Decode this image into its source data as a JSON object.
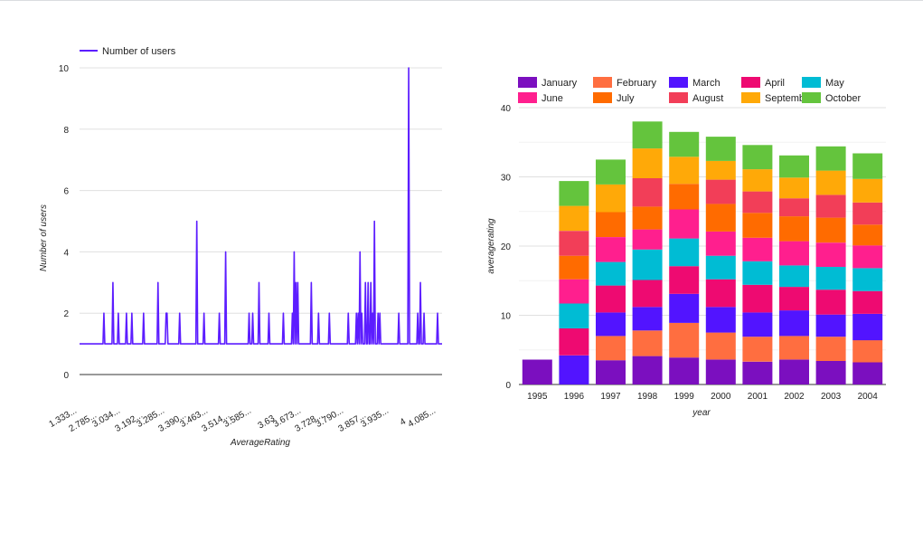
{
  "chart_data": [
    {
      "type": "line",
      "legend": [
        "Number of users"
      ],
      "legend_position": "top-left",
      "series_color": "#5c1dff",
      "xlabel": "AverageRating",
      "ylabel": "Number of users",
      "ylim": [
        0,
        10
      ],
      "yticks": [
        "0",
        "2",
        "4",
        "6",
        "8",
        "10"
      ],
      "xticks": [
        "1.333...",
        "2.785...",
        "3.034...",
        "3.192...",
        "3.285...",
        "3.390...",
        "3.463...",
        "3.514...",
        "3.585...",
        "3.63",
        "3.673...",
        "3.728...",
        "3.790...",
        "3.857...",
        "3.935...",
        "4",
        "4.085..."
      ],
      "values": [
        1,
        1,
        1,
        1,
        1,
        1,
        1,
        1,
        1,
        1,
        1,
        1,
        1,
        1,
        1,
        1,
        1,
        1,
        1,
        1,
        1,
        1,
        1,
        1,
        1,
        1,
        1,
        1,
        1,
        1,
        1,
        1,
        1,
        1,
        1,
        1,
        1,
        1,
        1,
        1,
        1,
        1,
        1,
        1,
        1,
        1,
        1,
        1,
        1,
        1,
        1,
        1,
        1,
        1,
        1,
        1,
        1,
        1,
        1,
        1,
        1,
        1,
        1,
        1,
        1,
        1,
        1,
        1,
        1,
        1,
        1,
        1,
        1,
        1,
        1,
        1,
        1,
        1,
        1,
        1,
        1,
        1,
        1,
        1,
        1,
        1,
        1,
        1,
        1,
        1,
        1,
        1,
        1,
        1,
        1,
        1,
        1,
        1,
        1,
        1,
        1,
        1,
        1,
        1,
        1,
        1,
        1,
        1,
        1,
        1,
        1,
        1,
        1,
        1,
        1,
        1,
        1,
        1,
        1,
        1,
        1,
        1,
        1,
        1,
        1,
        1,
        1,
        1,
        1,
        1,
        1,
        1,
        1,
        1,
        1,
        1,
        1,
        1,
        1,
        1,
        1,
        1,
        1,
        1,
        1,
        1,
        1,
        1,
        1,
        1,
        1,
        1,
        1,
        1,
        1,
        1,
        1,
        1,
        1,
        1,
        1,
        1,
        1,
        1,
        1,
        1,
        1,
        1,
        1,
        1,
        1,
        1,
        1,
        1,
        1,
        1,
        1,
        1,
        1,
        1,
        1,
        1,
        1,
        1,
        1,
        1,
        1,
        1,
        1,
        1,
        1,
        1,
        1,
        1,
        1,
        1,
        1,
        1,
        1,
        1,
        1,
        1,
        1,
        1,
        1,
        1,
        1,
        1,
        1,
        1
      ],
      "spikes": [
        [
          27,
          2
        ],
        [
          37,
          3
        ],
        [
          43,
          2
        ],
        [
          52,
          2
        ],
        [
          58,
          2
        ],
        [
          71,
          2
        ],
        [
          87,
          3
        ],
        [
          96,
          2
        ],
        [
          97,
          2
        ],
        [
          111,
          2
        ],
        [
          130,
          5
        ],
        [
          138,
          2
        ],
        [
          155,
          2
        ],
        [
          162,
          4
        ],
        [
          188,
          2
        ],
        [
          192,
          2
        ],
        [
          199,
          3
        ],
        [
          210,
          2
        ],
        [
          226,
          2
        ],
        [
          236,
          2
        ],
        [
          238,
          4
        ],
        [
          240,
          3
        ],
        [
          242,
          3
        ],
        [
          257,
          3
        ],
        [
          265,
          2
        ],
        [
          277,
          2
        ],
        [
          298,
          2
        ],
        [
          307,
          2
        ],
        [
          309,
          2
        ],
        [
          311,
          4
        ],
        [
          313,
          2
        ],
        [
          317,
          3
        ],
        [
          320,
          3
        ],
        [
          323,
          3
        ],
        [
          325,
          2
        ],
        [
          327,
          5
        ],
        [
          331,
          2
        ],
        [
          333,
          2
        ],
        [
          354,
          2
        ],
        [
          365,
          10
        ],
        [
          375,
          2
        ],
        [
          378,
          3
        ],
        [
          382,
          2
        ],
        [
          397,
          2
        ]
      ],
      "x_count": 403
    },
    {
      "type": "bar",
      "stacked": true,
      "title": "",
      "xlabel": "year",
      "ylabel": "averagerating",
      "ylim": [
        0,
        40
      ],
      "yticks": [
        "0",
        "10",
        "20",
        "30",
        "40"
      ],
      "categories": [
        "1995",
        "1996",
        "1997",
        "1998",
        "1999",
        "2000",
        "2001",
        "2002",
        "2003",
        "2004"
      ],
      "legend_position": "top",
      "series": [
        {
          "name": "January",
          "color": "#7b0fbf",
          "values": [
            3.6,
            0,
            3.5,
            4.1,
            3.9,
            3.6,
            3.3,
            3.6,
            3.4,
            3.2
          ]
        },
        {
          "name": "February",
          "color": "#ff6e40",
          "values": [
            0,
            0,
            3.5,
            3.7,
            5.0,
            3.9,
            3.6,
            3.4,
            3.5,
            3.2
          ]
        },
        {
          "name": "March",
          "color": "#5214ff",
          "values": [
            0,
            4.2,
            3.4,
            3.4,
            4.2,
            3.7,
            3.5,
            3.7,
            3.2,
            3.8
          ]
        },
        {
          "name": "April",
          "color": "#ee0a71",
          "values": [
            0,
            3.9,
            3.9,
            3.9,
            4.0,
            4.0,
            4.0,
            3.4,
            3.6,
            3.3
          ]
        },
        {
          "name": "May",
          "color": "#00bcd4",
          "values": [
            0,
            3.6,
            3.4,
            4.4,
            4.0,
            3.4,
            3.4,
            3.1,
            3.3,
            3.3
          ]
        },
        {
          "name": "June",
          "color": "#ff1f8e",
          "values": [
            0,
            3.5,
            3.6,
            2.9,
            4.2,
            3.5,
            3.4,
            3.5,
            3.5,
            3.3
          ]
        },
        {
          "name": "July",
          "color": "#ff6b00",
          "values": [
            0,
            3.4,
            3.6,
            3.3,
            3.7,
            4.0,
            3.6,
            3.6,
            3.6,
            3.0
          ]
        },
        {
          "name": "August",
          "color": "#f23e58",
          "values": [
            0,
            3.6,
            0,
            4.1,
            0,
            3.5,
            3.1,
            2.6,
            3.3,
            3.2
          ]
        },
        {
          "name": "September",
          "color": "#ffa908",
          "values": [
            0,
            3.6,
            4.0,
            4.3,
            3.9,
            2.7,
            3.2,
            3.0,
            3.5,
            3.4
          ]
        },
        {
          "name": "October",
          "color": "#64c43d",
          "values": [
            0,
            3.6,
            3.6,
            3.9,
            3.6,
            3.5,
            3.5,
            3.2,
            3.5,
            3.7
          ]
        }
      ]
    }
  ]
}
